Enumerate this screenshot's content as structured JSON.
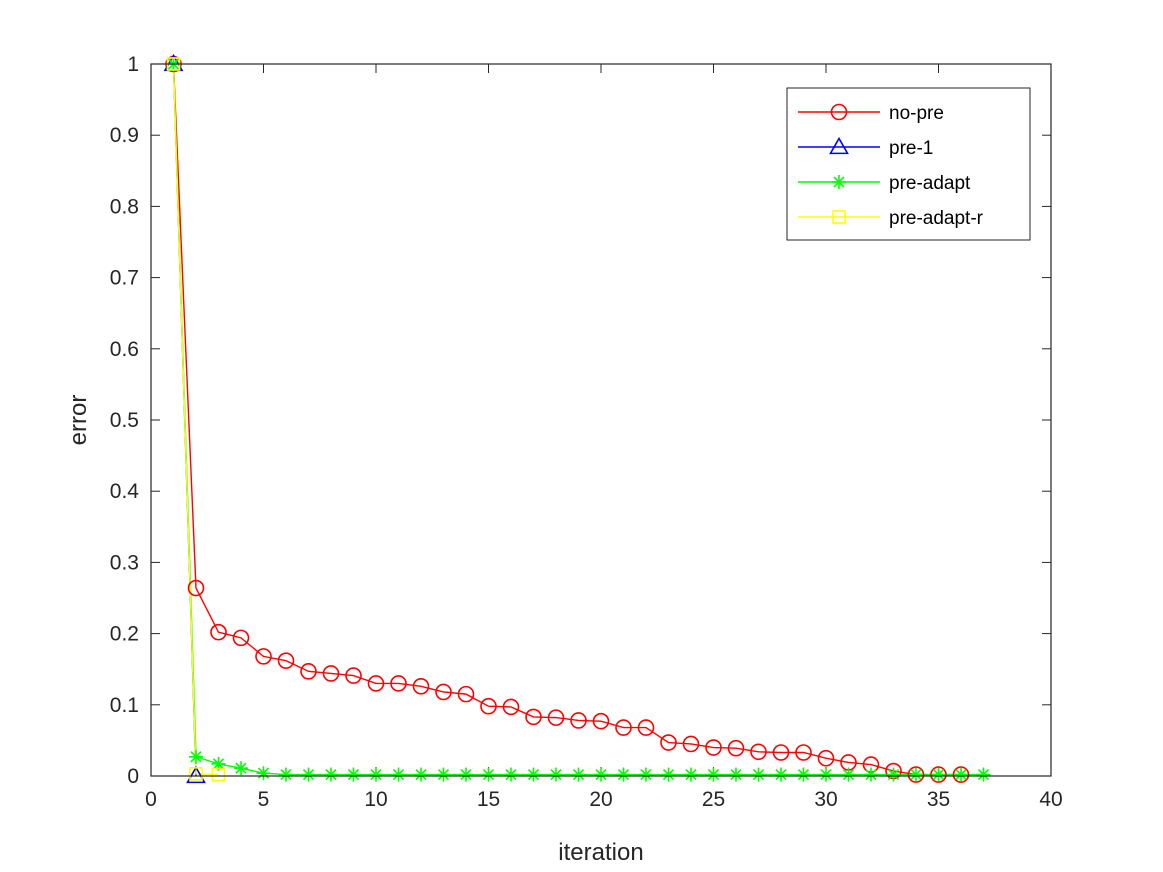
{
  "chart_data": {
    "type": "line",
    "title": "",
    "xlabel": "iteration",
    "ylabel": "error",
    "xlim": [
      0,
      40
    ],
    "ylim": [
      0,
      1
    ],
    "xticks": [
      0,
      5,
      10,
      15,
      20,
      25,
      30,
      35,
      40
    ],
    "yticks": [
      0,
      0.1,
      0.2,
      0.3,
      0.4,
      0.5,
      0.6,
      0.7,
      0.8,
      0.9,
      1
    ],
    "grid": false,
    "legend_position": "top-right",
    "series": [
      {
        "name": "no-pre",
        "color": "#ff0000",
        "marker": "circle",
        "x": [
          1,
          2,
          3,
          4,
          5,
          6,
          7,
          8,
          9,
          10,
          11,
          12,
          13,
          14,
          15,
          16,
          17,
          18,
          19,
          20,
          21,
          22,
          23,
          24,
          25,
          26,
          27,
          28,
          29,
          30,
          31,
          32,
          33,
          34,
          35,
          36
        ],
        "y": [
          1,
          0.264,
          0.202,
          0.194,
          0.168,
          0.162,
          0.147,
          0.144,
          0.141,
          0.13,
          0.13,
          0.126,
          0.118,
          0.115,
          0.098,
          0.097,
          0.083,
          0.082,
          0.078,
          0.077,
          0.068,
          0.068,
          0.047,
          0.045,
          0.04,
          0.039,
          0.034,
          0.033,
          0.033,
          0.025,
          0.019,
          0.016,
          0.007,
          0.002,
          0.002,
          0.002
        ]
      },
      {
        "name": "pre-1",
        "color": "#0000ff",
        "marker": "triangle",
        "x": [
          1,
          2
        ],
        "y": [
          1,
          0
        ]
      },
      {
        "name": "pre-adapt",
        "color": "#00ff00",
        "marker": "asterisk",
        "x": [
          1,
          2,
          3,
          4,
          5,
          6,
          7,
          8,
          9,
          10,
          11,
          12,
          13,
          14,
          15,
          16,
          17,
          18,
          19,
          20,
          21,
          22,
          23,
          24,
          25,
          26,
          27,
          28,
          29,
          30,
          31,
          32,
          33,
          34,
          35,
          36,
          37
        ],
        "y": [
          1,
          0.027,
          0.017,
          0.011,
          0.004,
          0.002,
          0.002,
          0.002,
          0.002,
          0.002,
          0.002,
          0.002,
          0.002,
          0.002,
          0.002,
          0.002,
          0.002,
          0.002,
          0.002,
          0.002,
          0.002,
          0.002,
          0.002,
          0.002,
          0.002,
          0.002,
          0.002,
          0.002,
          0.002,
          0.002,
          0.002,
          0.002,
          0.002,
          0.002,
          0.002,
          0.002,
          0.002
        ]
      },
      {
        "name": "pre-adapt-r",
        "color": "#ffff00",
        "marker": "square",
        "x": [
          1,
          2,
          3
        ],
        "y": [
          1,
          0.003,
          0.002
        ]
      }
    ]
  }
}
